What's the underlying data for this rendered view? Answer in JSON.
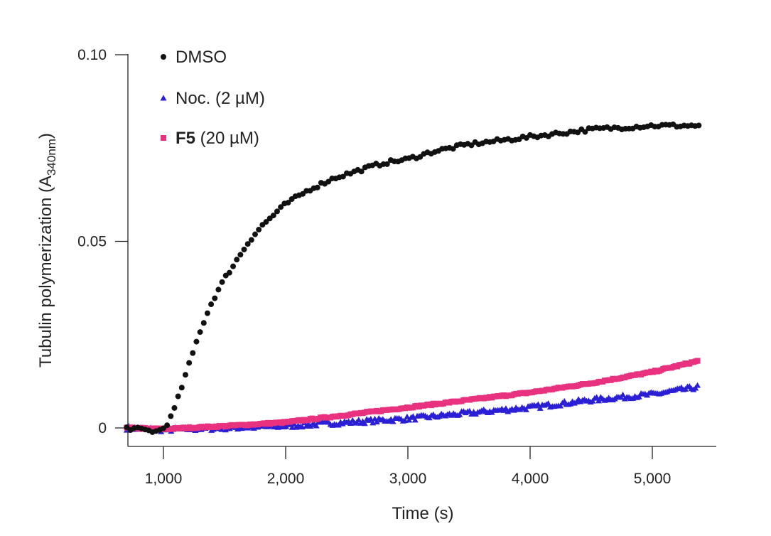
{
  "chart_data": {
    "type": "scatter",
    "title": "",
    "xlabel": "Time (s)",
    "ylabel_main": "Tubulin polymerization (A",
    "ylabel_sub": "340nm",
    "ylabel_close": ")",
    "xlim": [
      700,
      5500
    ],
    "ylim": [
      -0.005,
      0.1
    ],
    "x_ticks": [
      1000,
      2000,
      3000,
      4000,
      5000
    ],
    "x_tick_labels": [
      "1,000",
      "2,000",
      "3,000",
      "4,000",
      "5,000"
    ],
    "y_ticks": [
      0,
      0.05,
      0.1
    ],
    "y_tick_labels": [
      "0",
      "0.05",
      "0.10"
    ],
    "x_start": 700,
    "x_end": 5380,
    "x_step": 30,
    "legend_position": "top-left",
    "series": [
      {
        "id": "dmso",
        "name": "DMSO",
        "name_bold": "",
        "name_rest": "DMSO",
        "marker": "circle",
        "color": "#111111",
        "curve": {
          "kind": "sigmoid-plateau",
          "keypoints": [
            [
              700,
              0.0
            ],
            [
              950,
              -0.001
            ],
            [
              1000,
              0.0
            ],
            [
              1050,
              0.002
            ],
            [
              1100,
              0.006
            ],
            [
              1150,
              0.011
            ],
            [
              1200,
              0.016
            ],
            [
              1250,
              0.021
            ],
            [
              1300,
              0.026
            ],
            [
              1400,
              0.034
            ],
            [
              1500,
              0.04
            ],
            [
              1600,
              0.045
            ],
            [
              1700,
              0.05
            ],
            [
              1800,
              0.054
            ],
            [
              1900,
              0.057
            ],
            [
              2000,
              0.06
            ],
            [
              2200,
              0.064
            ],
            [
              2400,
              0.067
            ],
            [
              2600,
              0.069
            ],
            [
              2800,
              0.071
            ],
            [
              3000,
              0.072
            ],
            [
              3200,
              0.074
            ],
            [
              3500,
              0.076
            ],
            [
              4000,
              0.078
            ],
            [
              4500,
              0.08
            ],
            [
              5000,
              0.081
            ],
            [
              5380,
              0.081
            ]
          ],
          "noise": 0.0005
        }
      },
      {
        "id": "noc",
        "name": "Noc. (2 µM)",
        "name_bold": "",
        "name_rest": "Noc. (2 µM)",
        "marker": "triangle",
        "color": "#2b1fd6",
        "curve": {
          "kind": "linear-slow",
          "keypoints": [
            [
              700,
              0.0
            ],
            [
              1000,
              -0.0005
            ],
            [
              1500,
              0.0
            ],
            [
              2000,
              0.0005
            ],
            [
              2500,
              0.0015
            ],
            [
              3000,
              0.0025
            ],
            [
              3500,
              0.004
            ],
            [
              4000,
              0.0055
            ],
            [
              4500,
              0.0075
            ],
            [
              5000,
              0.009
            ],
            [
              5380,
              0.011
            ]
          ],
          "noise": 0.0006
        }
      },
      {
        "id": "f5",
        "name": "F5 (20 µM)",
        "name_bold": "F5",
        "name_rest": " (20 µM)",
        "marker": "square",
        "color": "#e8317f",
        "curve": {
          "kind": "linear",
          "keypoints": [
            [
              700,
              0.0
            ],
            [
              1000,
              -0.0003
            ],
            [
              1500,
              0.0005
            ],
            [
              2000,
              0.0015
            ],
            [
              2500,
              0.0035
            ],
            [
              3000,
              0.0055
            ],
            [
              3500,
              0.0075
            ],
            [
              4000,
              0.0095
            ],
            [
              4500,
              0.012
            ],
            [
              5000,
              0.015
            ],
            [
              5380,
              0.018
            ]
          ],
          "noise": 0.0002
        }
      }
    ]
  }
}
